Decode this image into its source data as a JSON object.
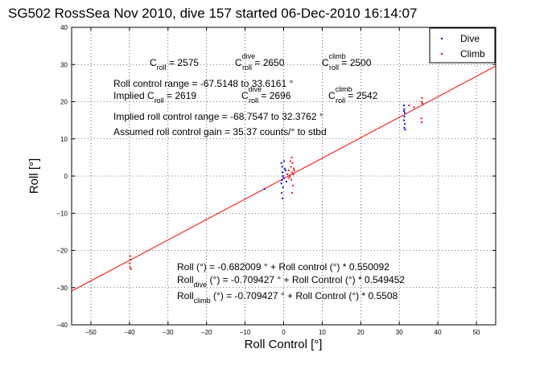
{
  "chart_data": {
    "type": "scatter",
    "title": "SG502 RossSea Nov 2010, dive 157 started 06-Dec-2010 16:14:07",
    "xlabel": "Roll Control [°]",
    "ylabel": "Roll [°]",
    "xlim": [
      -55,
      55
    ],
    "ylim": [
      -40,
      40
    ],
    "xticks": [
      -50,
      -40,
      -30,
      -20,
      -10,
      0,
      10,
      20,
      30,
      40,
      50
    ],
    "yticks": [
      -40,
      -30,
      -20,
      -10,
      0,
      10,
      20,
      30,
      40
    ],
    "grid": true,
    "legend_position": "top-right",
    "colors": {
      "dive": "#0000ff",
      "climb": "#ff0000",
      "fit": "#ff0000",
      "axes": "#000000"
    },
    "series": [
      {
        "name": "Dive",
        "points": [
          [
            -5,
            -3.5
          ],
          [
            -0.6,
            3.5
          ],
          [
            -0.4,
            2.5
          ],
          [
            -0.3,
            1.0
          ],
          [
            -0.2,
            0.0
          ],
          [
            -0.4,
            -1.0
          ],
          [
            -0.6,
            -2.0
          ],
          [
            -0.2,
            -3.0
          ],
          [
            -0.5,
            -4.5
          ],
          [
            -0.3,
            -6.0
          ],
          [
            0.1,
            4.0
          ],
          [
            0.3,
            2.0
          ],
          [
            0.0,
            -0.5
          ],
          [
            0.5,
            1.5
          ],
          [
            0.7,
            -1.5
          ],
          [
            1.0,
            0.5
          ],
          [
            31.2,
            19.0
          ],
          [
            31.3,
            18.0
          ],
          [
            31.4,
            17.0
          ],
          [
            31.3,
            16.0
          ],
          [
            31.2,
            15.0
          ],
          [
            31.4,
            14.0
          ],
          [
            31.3,
            13.0
          ],
          [
            31.5,
            12.5
          ],
          [
            31.2,
            17.5
          ]
        ]
      },
      {
        "name": "Climb",
        "points": [
          [
            -39.8,
            -21.5
          ],
          [
            -39.7,
            -22.5
          ],
          [
            -39.9,
            -23.5
          ],
          [
            -39.8,
            -24.5
          ],
          [
            -39.6,
            -25.0
          ],
          [
            1.0,
            0.5
          ],
          [
            1.3,
            1.5
          ],
          [
            1.6,
            0.0
          ],
          [
            1.9,
            2.5
          ],
          [
            2.0,
            -1.0
          ],
          [
            2.2,
            1.0
          ],
          [
            2.3,
            3.5
          ],
          [
            2.1,
            5.0
          ],
          [
            2.5,
            0.5
          ],
          [
            2.4,
            -2.5
          ],
          [
            2.6,
            2.0
          ],
          [
            2.2,
            -4.5
          ],
          [
            1.8,
            4.0
          ],
          [
            2.8,
            1.5
          ],
          [
            1.4,
            -0.5
          ],
          [
            32.5,
            19.0
          ],
          [
            35.8,
            20.0
          ],
          [
            35.9,
            21.0
          ],
          [
            35.7,
            15.5
          ],
          [
            35.8,
            14.5
          ],
          [
            33.8,
            18.5
          ],
          [
            36.0,
            19.5
          ]
        ]
      }
    ],
    "fit_line": {
      "intercept": -0.682009,
      "slope": 0.550092,
      "x_range": [
        -55,
        55
      ]
    },
    "annotations": {
      "c_center": "C",
      "c_center_sub": "roll",
      "c_center_value": " = 2575",
      "c_dive": "C",
      "c_dive_sup": "dive",
      "c_dive_sub": "roll",
      "c_dive_value": " = 2650",
      "c_climb": "C",
      "c_climb_sup": "climb",
      "c_climb_sub": "roll",
      "c_climb_value": " = 2500",
      "range_line": "Roll control range = -67.5148 to 33.6161 °",
      "implied_prefix": "Implied C",
      "implied_sub": "roll",
      "implied_value": " = 2619",
      "implied_dive": "C",
      "implied_dive_sup": "dive",
      "implied_dive_sub": "roll",
      "implied_dive_value": " = 2696",
      "implied_climb": "C",
      "implied_climb_sup": "climb",
      "implied_climb_sub": "roll",
      "implied_climb_value": " = 2542",
      "implied_range": "Implied roll control range = -68.7547 to 32.3762 °",
      "gain": "Assumed roll control gain = 35.37 counts/° to stbd",
      "fit_all": "Roll (°) = -0.682009 ° + Roll control (°) * 0.550092",
      "fit_dive_a": "Roll",
      "fit_dive_sub": "dive",
      "fit_dive_b": " (°) = -0.709427 ° + Roll Control (°) * 0.549452",
      "fit_climb_a": "Roll",
      "fit_climb_sub": "climb",
      "fit_climb_b": " (°) = -0.709427 ° + Roll Control (°) * 0.5508"
    }
  }
}
